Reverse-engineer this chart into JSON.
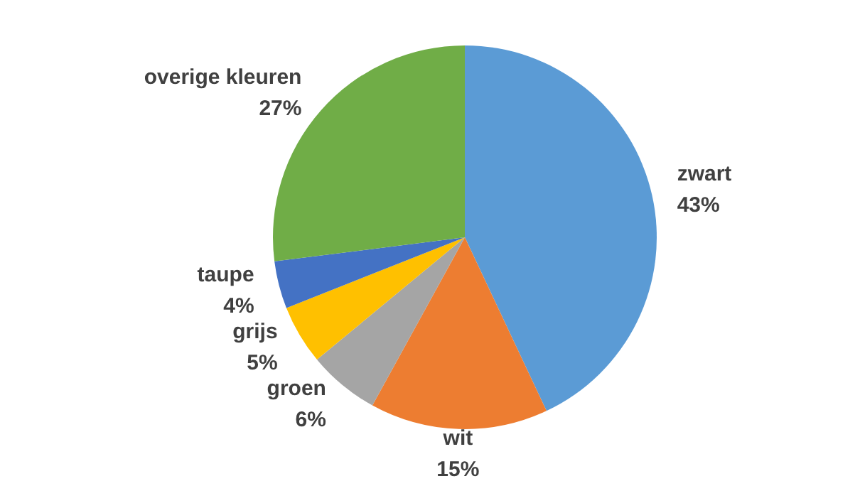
{
  "chart_data": {
    "type": "pie",
    "categories": [
      "zwart",
      "wit",
      "groen",
      "grijs",
      "taupe",
      "overige kleuren"
    ],
    "values": [
      43,
      15,
      6,
      5,
      4,
      27
    ],
    "value_labels": [
      "43%",
      "15%",
      "6%",
      "5%",
      "4%",
      "27%"
    ],
    "colors": [
      "#5b9bd5",
      "#ed7d31",
      "#a5a5a5",
      "#ffc000",
      "#4472c4",
      "#70ad47"
    ],
    "legend": false
  }
}
